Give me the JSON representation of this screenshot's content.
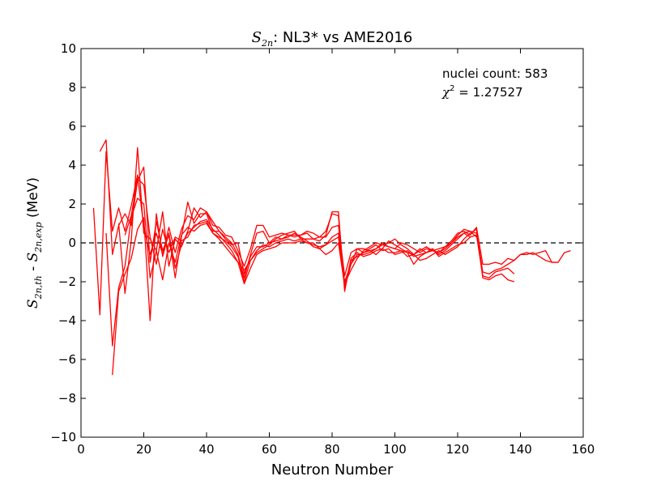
{
  "chart_data": {
    "type": "line",
    "title": {
      "math": "S",
      "sub": "2n",
      "rest": ":  NL3* vs AME2016"
    },
    "xlabel": "Neutron Number",
    "ylabel": {
      "s1": "S",
      "s1_sub": "2n,th",
      "sep": " - ",
      "s2": "S",
      "s2_sub": "2n,exp",
      "unit": " (MeV)"
    },
    "xlim": [
      0,
      160
    ],
    "ylim": [
      -10,
      10
    ],
    "xticks": [
      0,
      20,
      40,
      60,
      80,
      100,
      120,
      140,
      160
    ],
    "yticks": [
      10,
      8,
      6,
      4,
      2,
      0,
      -2,
      -4,
      -6,
      -8,
      -10
    ],
    "grid": false,
    "reference_line": {
      "y": 0,
      "style": "dashed",
      "color": "#000000"
    },
    "line_color": "#ff0000",
    "annotations": {
      "count": "nuclei count: 583",
      "chi_symbol": "χ",
      "chi_sup": "2",
      "chi_value": " = 1.27527"
    },
    "series": [
      {
        "x": [
          4,
          6,
          8,
          10,
          12,
          14,
          16,
          18,
          20,
          22,
          24,
          26,
          28,
          30,
          32,
          34,
          36,
          38,
          40,
          42,
          44,
          46,
          48,
          50,
          52,
          54,
          56,
          58,
          60,
          62,
          64,
          66,
          68,
          70,
          72,
          74,
          76,
          78,
          80,
          82,
          84,
          86,
          88,
          90,
          92,
          94,
          96,
          98,
          100,
          102,
          104,
          106,
          108,
          110,
          112,
          114,
          116,
          118,
          120,
          122,
          124,
          126,
          128,
          130,
          132,
          134,
          136,
          138,
          140,
          142,
          144,
          146,
          148,
          150,
          152,
          154,
          156
        ],
        "y": [
          1.8,
          -3.7,
          4.7,
          0.6,
          1.8,
          0.6,
          1.9,
          3.5,
          0.8,
          -0.6,
          0.5,
          -0.6,
          0.8,
          -0.5,
          0.7,
          1.4,
          1.2,
          1.8,
          1.6,
          0.9,
          0.8,
          0.4,
          0.3,
          -0.4,
          -1.2,
          -0.3,
          0.9,
          0.9,
          0.3,
          0.4,
          0.5,
          0.4,
          0.3,
          0.4,
          0.6,
          0.5,
          0.3,
          0.6,
          1.5,
          1.4,
          -2.3,
          -1.1,
          -0.3,
          -0.3,
          -0.4,
          -0.3,
          0.0,
          -0.2,
          -0.3,
          -0.4,
          -0.7,
          -0.6,
          -0.3,
          -0.5,
          -0.4,
          -0.3,
          -0.2,
          0.1,
          0.5,
          0.6,
          0.4,
          0.8,
          -1.1,
          -1.1,
          -1.0,
          -1.1,
          -0.8,
          -0.9,
          -0.6,
          -0.5,
          -0.6,
          -0.5,
          -0.4,
          -1.0,
          -1.0,
          -0.5,
          -0.4
        ]
      },
      {
        "x": [
          6,
          8,
          10,
          12,
          14,
          16,
          18,
          20,
          22,
          24,
          26,
          28,
          30,
          32,
          34,
          36,
          38,
          40,
          42,
          44,
          46,
          48,
          50,
          52,
          54,
          56,
          58,
          60,
          62,
          64,
          66,
          68,
          70,
          72,
          74,
          76,
          78,
          80,
          82,
          84,
          86,
          88,
          90,
          92,
          94,
          96,
          98,
          100,
          102,
          104,
          106,
          108,
          110,
          112,
          114,
          116,
          118,
          120,
          122,
          124,
          126,
          128,
          130,
          132,
          134,
          136,
          138,
          140,
          142,
          144,
          146,
          148,
          150,
          152
        ],
        "y": [
          4.7,
          5.3,
          -0.6,
          0.9,
          1.5,
          0.9,
          3.2,
          3.9,
          -1.0,
          1.1,
          -0.4,
          0.4,
          -1.8,
          0.3,
          2.1,
          1.0,
          1.5,
          1.5,
          0.6,
          0.6,
          0.3,
          0.0,
          -0.6,
          -1.8,
          -0.6,
          0.5,
          0.6,
          0.0,
          0.3,
          0.2,
          0.4,
          0.4,
          0.4,
          0.5,
          0.2,
          0.1,
          0.4,
          1.6,
          1.6,
          -2.5,
          -0.8,
          -0.5,
          -0.7,
          -0.6,
          -0.4,
          -0.3,
          0.1,
          -0.1,
          -0.3,
          -0.5,
          -0.6,
          -0.4,
          -0.2,
          -0.4,
          -0.5,
          -0.3,
          0.0,
          0.3,
          0.5,
          0.6,
          0.5,
          -1.5,
          -1.6,
          -1.4,
          -1.3,
          -1.1,
          -0.9,
          -0.6,
          -0.6,
          -0.5,
          -0.7,
          -0.9,
          -1.0,
          -1.0
        ]
      },
      {
        "x": [
          8,
          10,
          12,
          14,
          16,
          18,
          20,
          22,
          24,
          26,
          28,
          30,
          32,
          34,
          36,
          38,
          40,
          42,
          44,
          46,
          48,
          50,
          52,
          54,
          56,
          58,
          60,
          62,
          64,
          66,
          68,
          70,
          72,
          74,
          76,
          78,
          80,
          82,
          84,
          86,
          88,
          90,
          92,
          94,
          96,
          98,
          100,
          102,
          104,
          106,
          108,
          110,
          112,
          114,
          116,
          118,
          120,
          122,
          124,
          126,
          128,
          130,
          132,
          134,
          136,
          138
        ],
        "y": [
          0.5,
          -5.3,
          -2.3,
          -1.2,
          1.3,
          2.3,
          2.0,
          -1.8,
          -0.4,
          -1.9,
          0.0,
          -1.0,
          0.4,
          0.8,
          0.6,
          0.9,
          1.0,
          0.5,
          0.3,
          0.1,
          -0.2,
          -0.7,
          -2.0,
          -0.9,
          -0.4,
          -0.1,
          -0.2,
          0.0,
          0.1,
          0.2,
          0.1,
          0.2,
          0.2,
          0.2,
          0.3,
          0.3,
          0.8,
          0.9,
          -1.7,
          -0.5,
          -0.3,
          -0.5,
          -0.4,
          -0.6,
          -0.3,
          -0.5,
          -0.5,
          -0.4,
          -0.5,
          -1.1,
          -0.7,
          -0.5,
          -0.3,
          -0.7,
          -0.5,
          -0.3,
          -0.1,
          0.0,
          0.3,
          0.4,
          -1.7,
          -1.8,
          -1.5,
          -1.4,
          -1.3,
          -1.6
        ]
      },
      {
        "x": [
          10,
          12,
          14,
          16,
          18,
          20,
          22,
          24,
          26,
          28,
          30,
          32,
          34,
          36,
          38,
          40,
          42,
          44,
          46,
          48,
          50,
          52,
          54,
          56,
          58,
          60,
          62,
          64,
          66,
          68,
          70,
          72,
          74,
          76,
          78,
          80,
          82,
          84,
          86,
          88,
          90,
          92,
          94,
          96,
          98,
          100,
          102,
          104,
          106,
          108,
          110,
          112,
          114,
          116,
          118,
          120,
          122,
          124,
          126,
          128,
          130,
          132,
          134,
          136,
          138
        ],
        "y": [
          -6.8,
          -2.5,
          -1.6,
          -0.8,
          0.7,
          1.3,
          -4.0,
          1.5,
          -0.7,
          0.5,
          -1.3,
          -0.1,
          0.5,
          0.8,
          1.1,
          1.2,
          0.7,
          0.4,
          0.0,
          -0.4,
          -1.0,
          -2.1,
          -1.3,
          -0.6,
          -0.4,
          -0.3,
          -0.2,
          0.0,
          0.0,
          0.0,
          0.1,
          0.0,
          -0.1,
          -0.2,
          -0.1,
          0.3,
          0.5,
          -2.0,
          -1.1,
          -0.6,
          -0.6,
          -0.5,
          -0.3,
          -0.1,
          0.0,
          0.2,
          -0.1,
          -0.3,
          -0.6,
          -0.9,
          -0.8,
          -0.6,
          -0.4,
          -0.6,
          -0.4,
          -0.2,
          0.2,
          0.5,
          0.7,
          -1.8,
          -1.9,
          -1.7,
          -1.6,
          -1.9,
          -2.0
        ]
      },
      {
        "x": [
          12,
          14,
          16,
          18,
          20,
          22,
          24,
          26,
          28,
          30,
          32,
          34,
          36,
          38,
          40,
          42,
          44,
          46,
          48,
          50,
          52,
          54,
          56,
          58,
          60,
          62,
          64,
          66,
          68,
          70,
          72,
          74,
          76,
          78,
          80,
          82,
          84,
          86,
          88,
          90,
          92,
          94,
          96,
          98,
          100,
          102,
          104,
          106,
          108,
          110,
          112,
          114,
          116,
          118,
          120,
          122,
          124,
          126
        ],
        "y": [
          1.0,
          -2.6,
          0.1,
          4.9,
          0.5,
          0.2,
          -0.4,
          1.6,
          -1.2,
          0.2,
          -0.2,
          0.6,
          1.8,
          1.3,
          1.6,
          1.1,
          0.6,
          0.2,
          -0.1,
          0.0,
          -1.6,
          -0.7,
          -0.2,
          -0.2,
          0.0,
          0.1,
          0.2,
          0.3,
          0.5,
          0.3,
          0.1,
          -0.2,
          -0.3,
          -0.1,
          0.1,
          0.3,
          -2.1,
          -1.4,
          -0.8,
          -0.4,
          -0.2,
          0.0,
          -0.1,
          -0.2,
          -0.3,
          0.0,
          -0.1,
          -0.3,
          -0.5,
          -0.3,
          -0.4,
          -0.5,
          -0.2,
          0.0,
          0.4,
          0.7,
          0.6,
          0.3
        ]
      },
      {
        "x": [
          14,
          16,
          18,
          20,
          22,
          24,
          26,
          28,
          30,
          32,
          34,
          36,
          38,
          40,
          42,
          44,
          46,
          48,
          50,
          52,
          54,
          56,
          58,
          60,
          62,
          64,
          66,
          68,
          70,
          72,
          74,
          76,
          78,
          80,
          82,
          84,
          86,
          88,
          90,
          92,
          94,
          96,
          98,
          100,
          102,
          104,
          106,
          108,
          110,
          112,
          114,
          116,
          118,
          120,
          122,
          124
        ],
        "y": [
          0.4,
          1.4,
          3.3,
          3.0,
          0.3,
          -1.1,
          0.7,
          -0.5,
          0.3,
          0.1,
          0.3,
          0.9,
          1.0,
          1.1,
          0.5,
          0.2,
          -0.2,
          -0.6,
          -1.0,
          -1.4,
          -0.9,
          -0.5,
          -0.3,
          -0.1,
          0.2,
          0.4,
          0.5,
          0.6,
          0.2,
          0.0,
          0.0,
          -0.3,
          -0.6,
          -0.4,
          0.0,
          -2.2,
          -0.9,
          -0.7,
          -0.5,
          -0.3,
          -0.1,
          -0.4,
          -0.3,
          -0.6,
          -0.5,
          -0.4,
          -0.7,
          -0.6,
          -0.5,
          -0.3,
          -0.6,
          -0.4,
          -0.1,
          0.2,
          0.5,
          0.3
        ]
      }
    ]
  }
}
